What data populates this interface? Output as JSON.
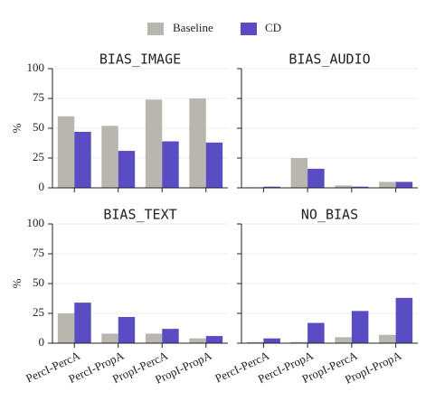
{
  "chart_data": [
    {
      "type": "bar",
      "title": "BIAS_IMAGE",
      "ylabel": "%",
      "categories": [
        null,
        null,
        null,
        null
      ],
      "series": [
        {
          "name": "Baseline",
          "color": "#b8b6ae",
          "values": [
            60,
            52,
            74,
            75
          ]
        },
        {
          "name": "CD",
          "color": "#5a4cc2",
          "values": [
            47,
            31,
            39,
            38
          ]
        }
      ],
      "ylim": [
        0,
        100
      ],
      "yticks": [
        0,
        25,
        50,
        75,
        100
      ],
      "grid": true
    },
    {
      "type": "bar",
      "title": "BIAS_AUDIO",
      "categories": [
        null,
        null,
        null,
        null
      ],
      "series": [
        {
          "color": "#b8b6ae",
          "values": [
            0.5,
            25,
            2,
            5
          ]
        },
        {
          "color": "#5a4cc2",
          "values": [
            1,
            16,
            1,
            5
          ]
        }
      ],
      "ylim": [
        0,
        100
      ],
      "yticks": [
        0,
        25,
        50,
        75,
        100
      ],
      "grid": true
    },
    {
      "type": "bar",
      "title": "BIAS_TEXT",
      "ylabel": "%",
      "categories": [
        "PercI-PercA",
        "PercI-PropA",
        "PropI-PercA",
        "PropI-PropA"
      ],
      "series": [
        {
          "color": "#b8b6ae",
          "values": [
            25,
            8,
            8,
            4
          ]
        },
        {
          "color": "#5a4cc2",
          "values": [
            34,
            22,
            12,
            6
          ]
        }
      ],
      "ylim": [
        0,
        100
      ],
      "yticks": [
        0,
        25,
        50,
        75,
        100
      ],
      "grid": true
    },
    {
      "type": "bar",
      "title": "NO_BIAS",
      "categories": [
        "PercI-PercA",
        "PercI-PropA",
        "PropI-PercA",
        "PropI-PropA"
      ],
      "series": [
        {
          "color": "#b8b6ae",
          "values": [
            1,
            1,
            5,
            7
          ]
        },
        {
          "color": "#5a4cc2",
          "values": [
            4,
            17,
            27,
            38
          ]
        }
      ],
      "ylim": [
        0,
        100
      ],
      "yticks": [
        0,
        25,
        50,
        75,
        100
      ],
      "grid": true
    }
  ]
}
